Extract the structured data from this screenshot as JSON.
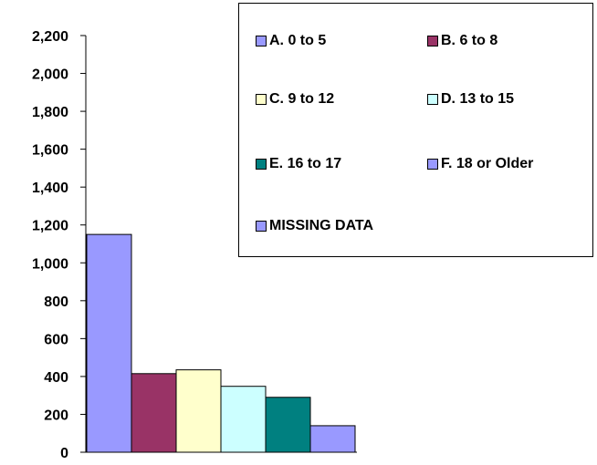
{
  "chart_data": {
    "type": "bar",
    "categories": [
      "A. 0 to 5",
      "B. 6 to 8",
      "C. 9 to 12",
      "D. 13 to 15",
      "E. 16 to 17",
      "F. 18 or Older",
      "MISSING DATA"
    ],
    "values": [
      1150,
      415,
      435,
      348,
      290,
      140,
      0
    ],
    "colors": [
      "#9999ff",
      "#993366",
      "#ffffcc",
      "#ccffff",
      "#008080",
      "#9999ff",
      "#9999ff"
    ],
    "yticks": [
      "0",
      "200",
      "400",
      "600",
      "800",
      "1,000",
      "1,200",
      "1,400",
      "1,600",
      "1,800",
      "2,000",
      "2,200"
    ],
    "ylim": [
      0,
      2200
    ],
    "legend": {
      "placement": "top-right",
      "items": [
        {
          "label": "A. 0 to 5",
          "color": "#9999ff"
        },
        {
          "label": "B. 6 to 8",
          "color": "#993366"
        },
        {
          "label": "C. 9 to 12",
          "color": "#ffffcc"
        },
        {
          "label": "D. 13 to 15",
          "color": "#ccffff"
        },
        {
          "label": "E. 16 to 17",
          "color": "#008080"
        },
        {
          "label": "F. 18 or Older",
          "color": "#9999ff"
        },
        {
          "label": "MISSING DATA",
          "color": "#9999ff"
        }
      ]
    },
    "grid": false
  }
}
